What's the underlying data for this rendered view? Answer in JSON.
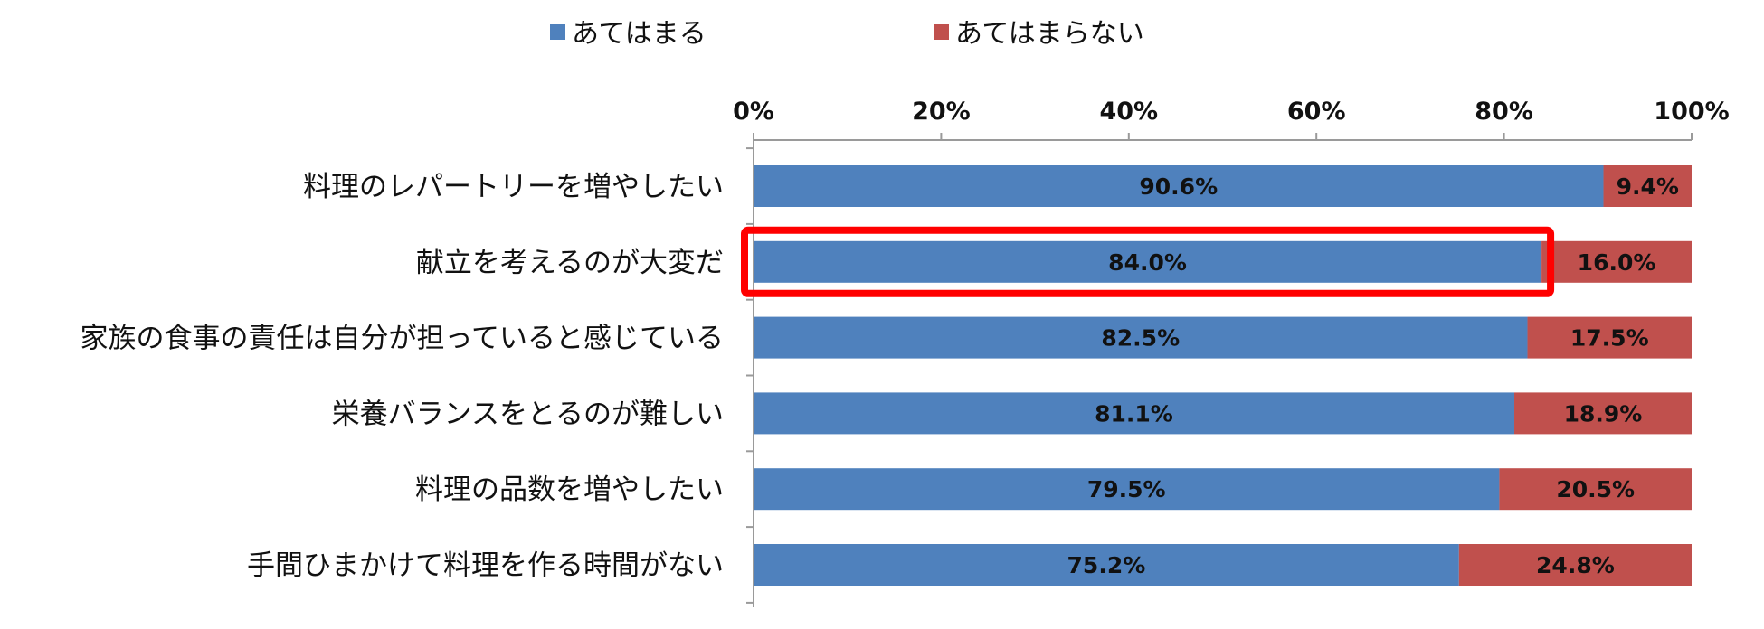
{
  "chart_data": {
    "type": "bar",
    "orientation": "horizontal",
    "stacked": true,
    "categories": [
      "料理のレパートリーを増やしたい",
      "献立を考えるのが大変だ",
      "家族の食事の責任は自分が担っていると感じている",
      "栄養バランスをとるのが難しい",
      "料理の品数を増やしたい",
      "手間ひまかけて料理を作る時間がない"
    ],
    "series": [
      {
        "name": "あてはまる",
        "color": "#4F81BD",
        "values": [
          90.6,
          84.0,
          82.5,
          81.1,
          79.5,
          75.2
        ],
        "labels": [
          "90.6%",
          "84.0%",
          "82.5%",
          "81.1%",
          "79.5%",
          "75.2%"
        ]
      },
      {
        "name": "あてはまらない",
        "color": "#C0504D",
        "values": [
          9.4,
          16.0,
          17.5,
          18.9,
          20.5,
          24.8
        ],
        "labels": [
          "9.4%",
          "16.0%",
          "17.5%",
          "18.9%",
          "20.5%",
          "24.8%"
        ]
      }
    ],
    "xlim": [
      0,
      100
    ],
    "x_ticks": [
      0,
      20,
      40,
      60,
      80,
      100
    ],
    "x_tick_labels": [
      "0%",
      "20%",
      "40%",
      "60%",
      "80%",
      "100%"
    ],
    "x_axis_position": "top",
    "legend_position": "top-center",
    "grid": false,
    "highlight": {
      "category_index": 1,
      "series_index": 0,
      "color": "#FF0000"
    }
  }
}
